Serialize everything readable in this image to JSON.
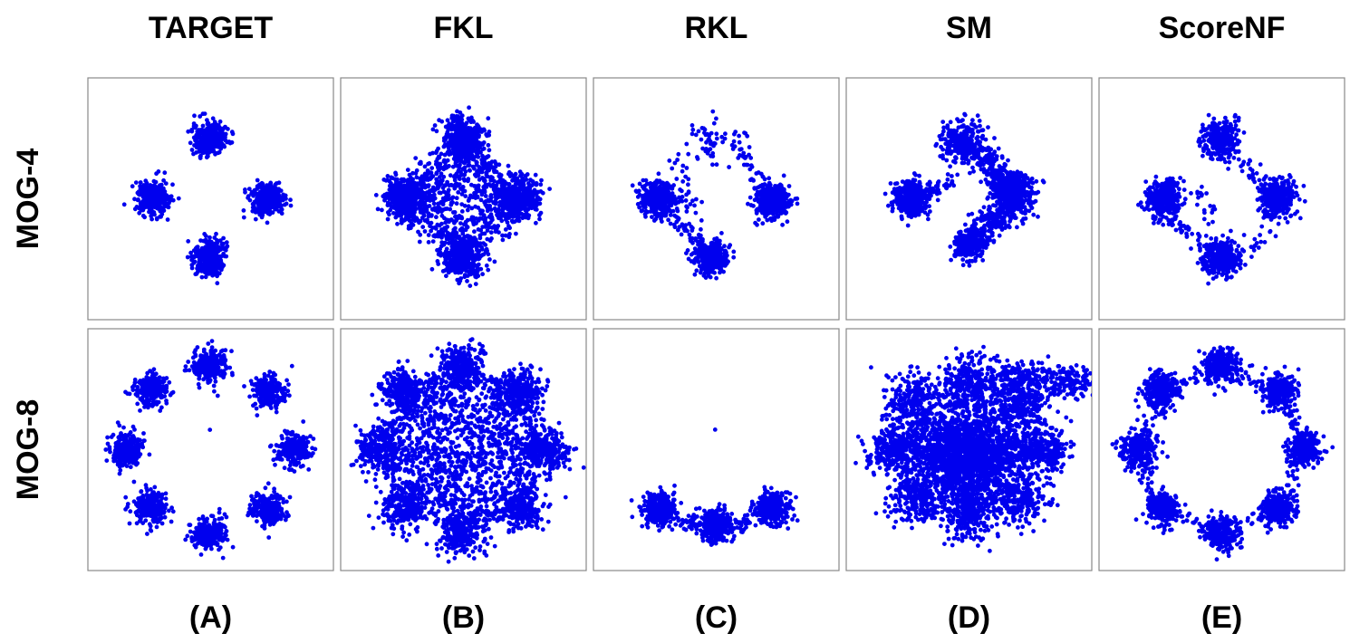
{
  "columns": [
    "TARGET",
    "FKL",
    "RKL",
    "SM",
    "ScoreNF"
  ],
  "rows": [
    "MOG-4",
    "MOG-8"
  ],
  "panel_labels": [
    "(A)",
    "(B)",
    "(C)",
    "(D)",
    "(E)"
  ]
}
